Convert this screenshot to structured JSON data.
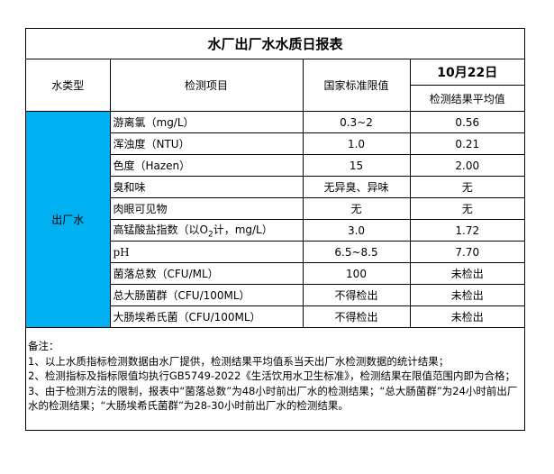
{
  "title": "水厂出厂水水质日报表",
  "headers": {
    "water_type": "水类型",
    "item": "检测项目",
    "standard": "国家标准限值",
    "date": "10月22日",
    "result": "检测结果平均值"
  },
  "water_type_value": "出厂水",
  "colors": {
    "water_type_cell": "#00B0F0"
  },
  "rows": [
    {
      "item": "游离氯（mg/L）",
      "standard": "0.3~2",
      "result": "0.56"
    },
    {
      "item": "浑浊度（NTU）",
      "standard": "1.0",
      "result": "0.21"
    },
    {
      "item": "色度（Hazen）",
      "standard": "15",
      "result": "2.00"
    },
    {
      "item": "臭和味",
      "standard": "无异臭、异味",
      "result": "无"
    },
    {
      "item": "肉眼可见物",
      "standard": "无",
      "result": "无"
    },
    {
      "item_prefix": "高锰酸盐指数（以O",
      "item_sub": "2",
      "item_suffix": "计，mg/L）",
      "standard": "3.0",
      "result": "1.72"
    },
    {
      "item": "pH",
      "standard": "6.5~8.5",
      "result": "7.70"
    },
    {
      "item": "菌落总数（CFU/ML）",
      "standard": "100",
      "result": "未检出"
    },
    {
      "item": "总大肠菌群（CFU/100ML）",
      "standard": "不得检出",
      "result": "未检出"
    },
    {
      "item": "大肠埃希氏菌（CFU/100ML）",
      "standard": "不得检出",
      "result": "未检出"
    }
  ],
  "notes": {
    "heading": "备注：",
    "lines": [
      "1、以上水质指标检测数据由水厂提供，检测结果平均值系当天出厂水检测数据的统计结果；",
      "2、检测指标及指标限值均执行GB5749-2022《生活饮用水卫生标准》，检测结果在限值范围内即为合格；",
      "3、由于检测方法的限制，报表中“菌落总数”为48小时前出厂水的检测结果；“总大肠菌群”为24小时前出厂水的检测结果；“大肠埃希氏菌群”为28-30小时前出厂水的检测结果。"
    ]
  }
}
